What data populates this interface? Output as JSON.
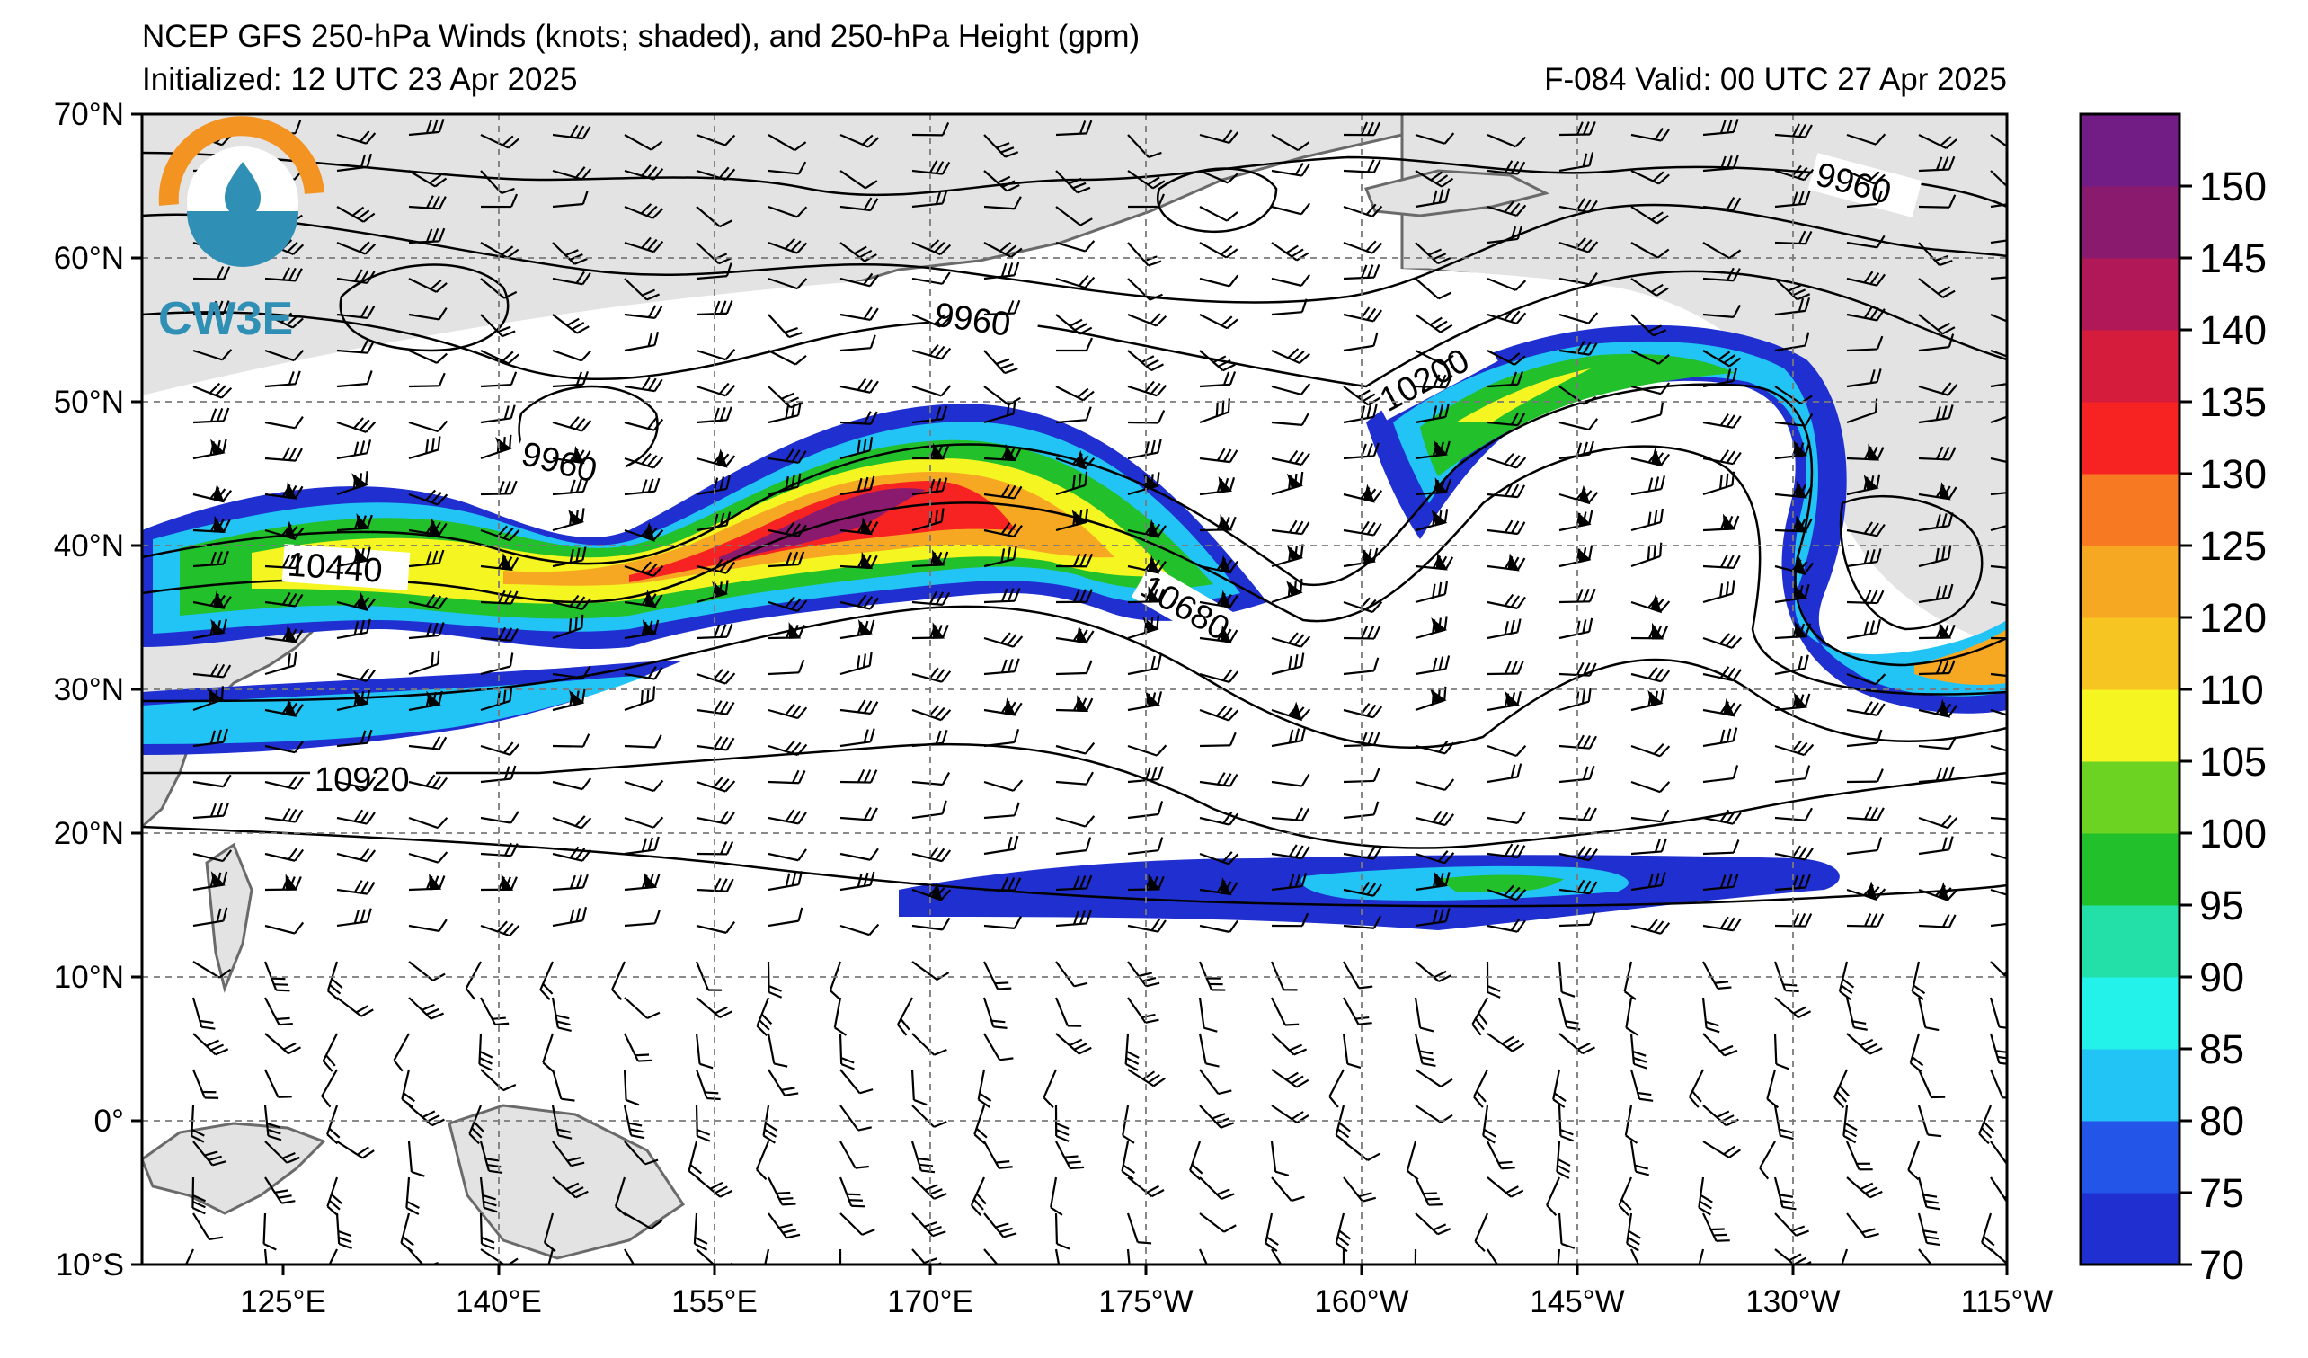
{
  "header": {
    "title": "NCEP GFS 250-hPa Winds (knots; shaded), and 250-hPa Height (gpm)",
    "initialized": "Initialized: 12 UTC 23 Apr 2025",
    "valid": "F-084  Valid: 00 UTC 27 Apr 2025"
  },
  "logo": {
    "text": "CW3E"
  },
  "map": {
    "lat_labels": [
      "70°N",
      "60°N",
      "50°N",
      "40°N",
      "30°N",
      "20°N",
      "10°N",
      "0°",
      "10°S"
    ],
    "lon_labels": [
      "125°E",
      "140°E",
      "155°E",
      "170°E",
      "175°W",
      "160°W",
      "145°W",
      "130°W",
      "115°W"
    ],
    "contour_labels": [
      "9960",
      "9960",
      "9960",
      "10200",
      "10440",
      "10680",
      "10920"
    ],
    "extent": {
      "lon_min": 110,
      "lon_max": 245,
      "lat_min": -10,
      "lat_max": 70
    }
  },
  "colorbar": {
    "labels": [
      "70",
      "75",
      "80",
      "85",
      "90",
      "95",
      "100",
      "105",
      "110",
      "120",
      "125",
      "130",
      "135",
      "140",
      "145",
      "150"
    ],
    "colors": [
      "#1f2fd0",
      "#2255e8",
      "#22c3f5",
      "#22f2ea",
      "#22e0a8",
      "#22c02a",
      "#6dd322",
      "#f5f522",
      "#f7c522",
      "#f7a822",
      "#f77a22",
      "#f72222",
      "#d61c3c",
      "#b01858",
      "#8a1a6e",
      "#721c86"
    ]
  }
}
